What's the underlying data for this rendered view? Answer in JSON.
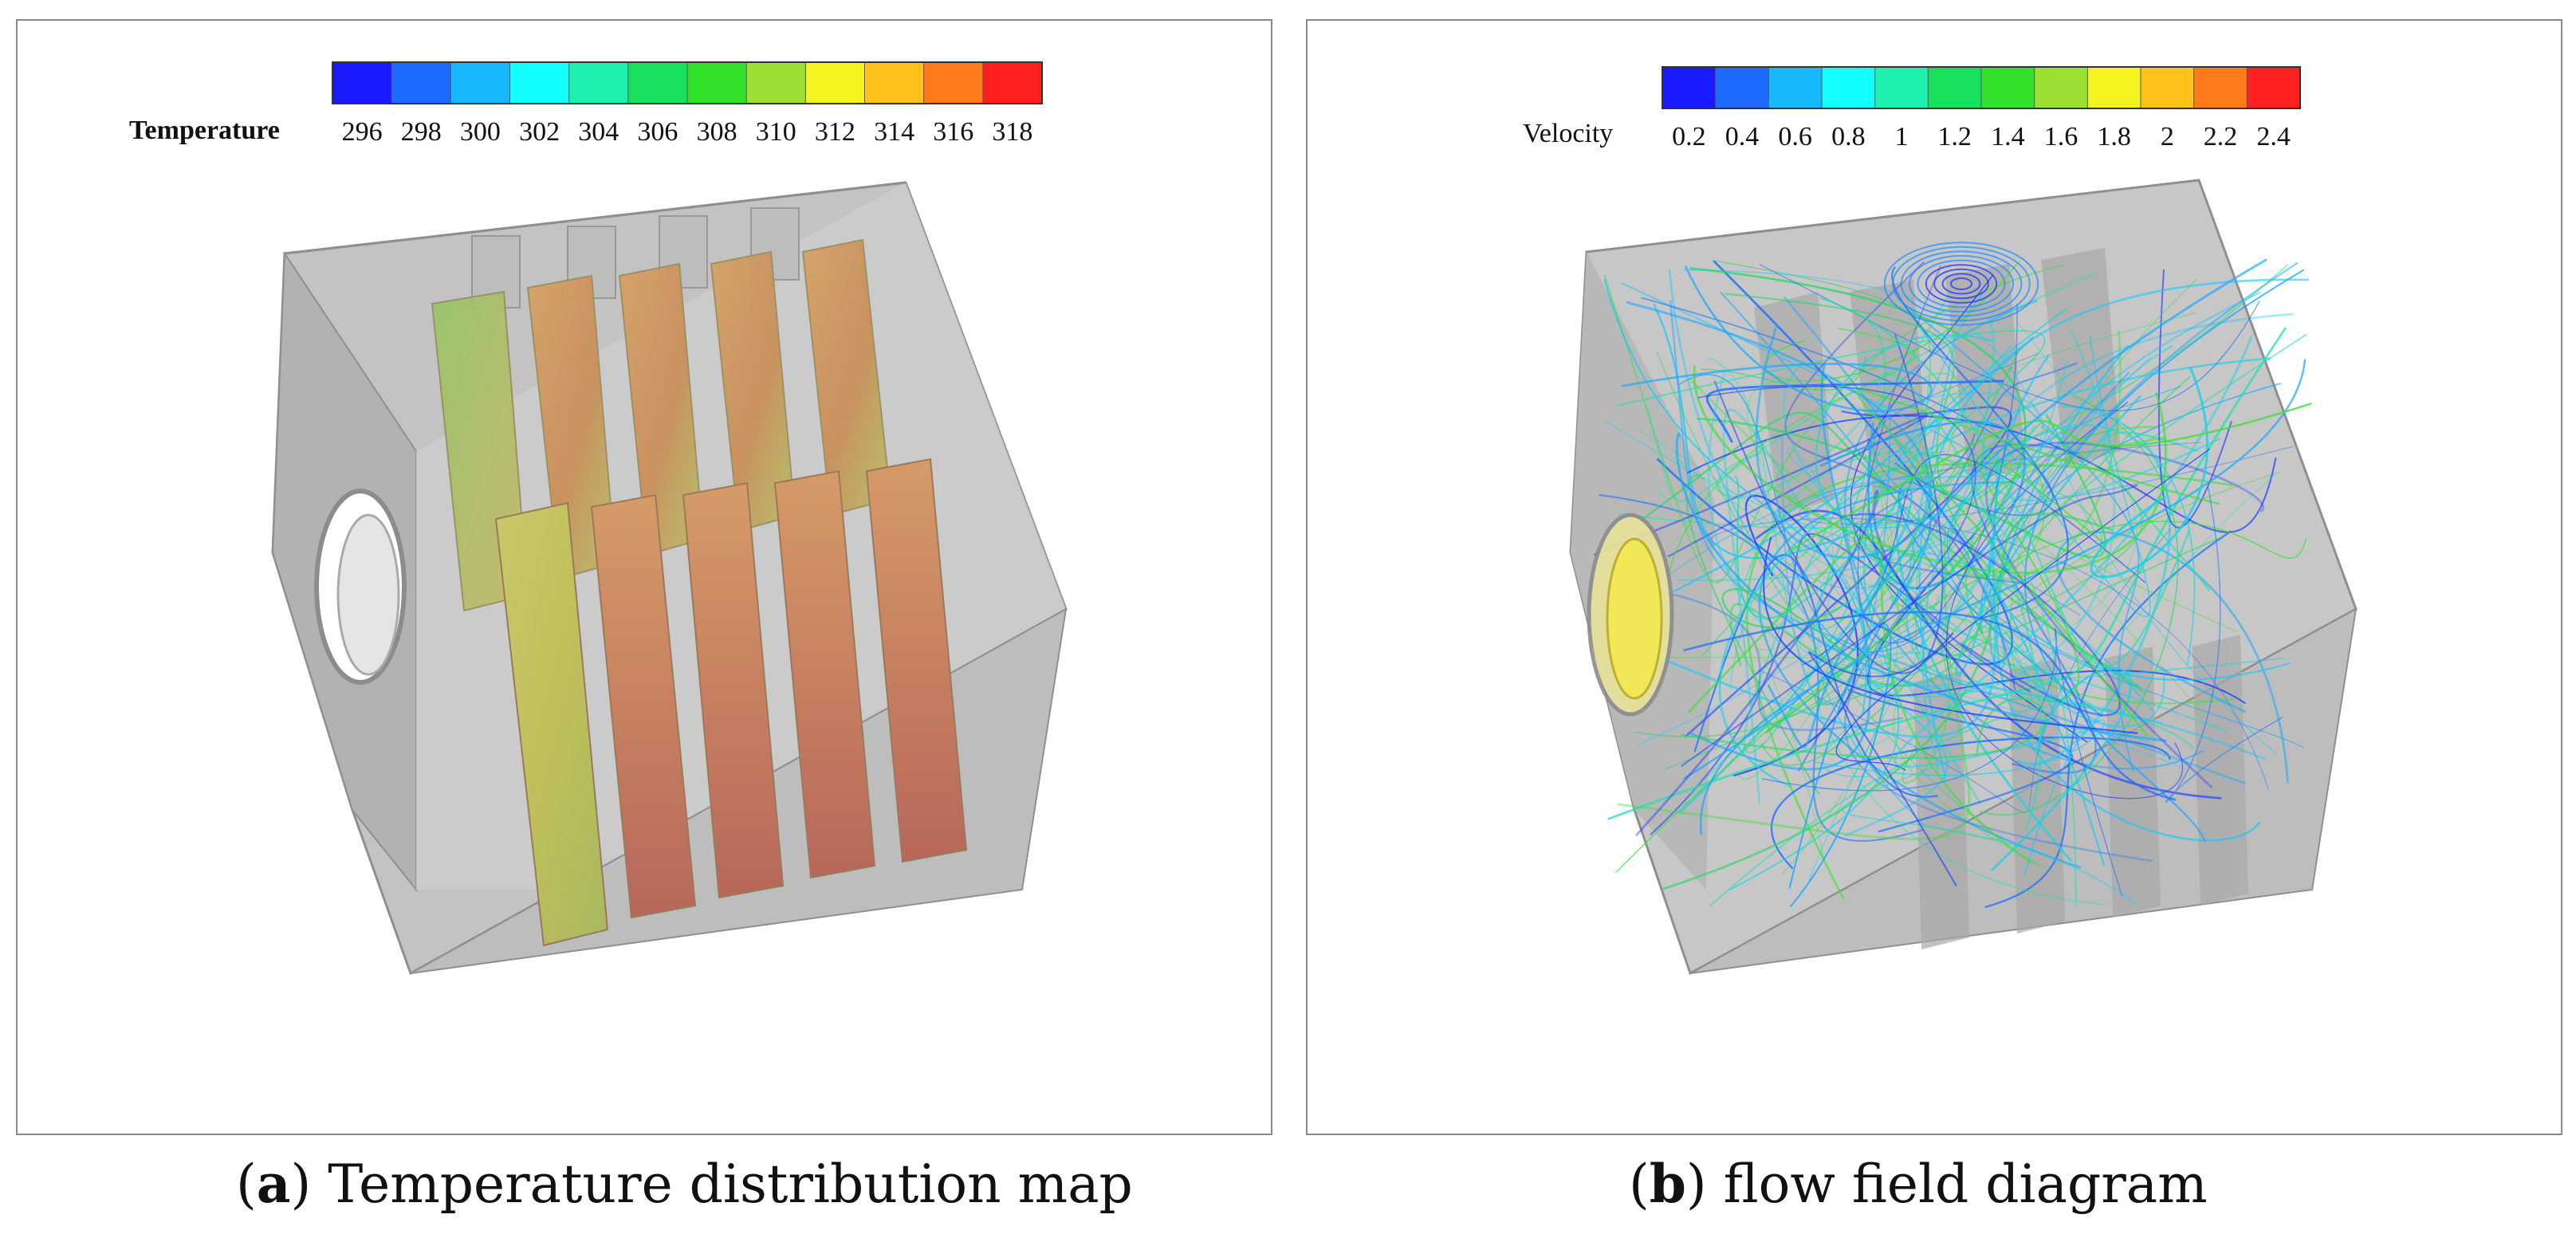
{
  "panels": {
    "a": {
      "colorbar": {
        "title": "Temperature",
        "ticks": [
          "296",
          "298",
          "300",
          "302",
          "304",
          "306",
          "308",
          "310",
          "312",
          "314",
          "316",
          "318"
        ]
      },
      "caption": {
        "letter": "a",
        "text": " Temperature distribution map"
      }
    },
    "b": {
      "colorbar": {
        "title": "Velocity",
        "ticks": [
          "0.2",
          "0.4",
          "0.6",
          "0.8",
          "1",
          "1.2",
          "1.4",
          "1.6",
          "1.8",
          "2",
          "2.2",
          "2.4"
        ]
      },
      "caption": {
        "letter": "b",
        "text": " flow field diagram"
      }
    }
  },
  "colors": {
    "colormap": [
      "#1a1aff",
      "#1f6bff",
      "#18b8ff",
      "#14ffff",
      "#1ef0b0",
      "#19e05c",
      "#33e02a",
      "#9be033",
      "#f4f21f",
      "#ffc11a",
      "#ff7a1a",
      "#ff2020"
    ],
    "housing": "#b9b9b9",
    "border": "#8a8a8a"
  }
}
